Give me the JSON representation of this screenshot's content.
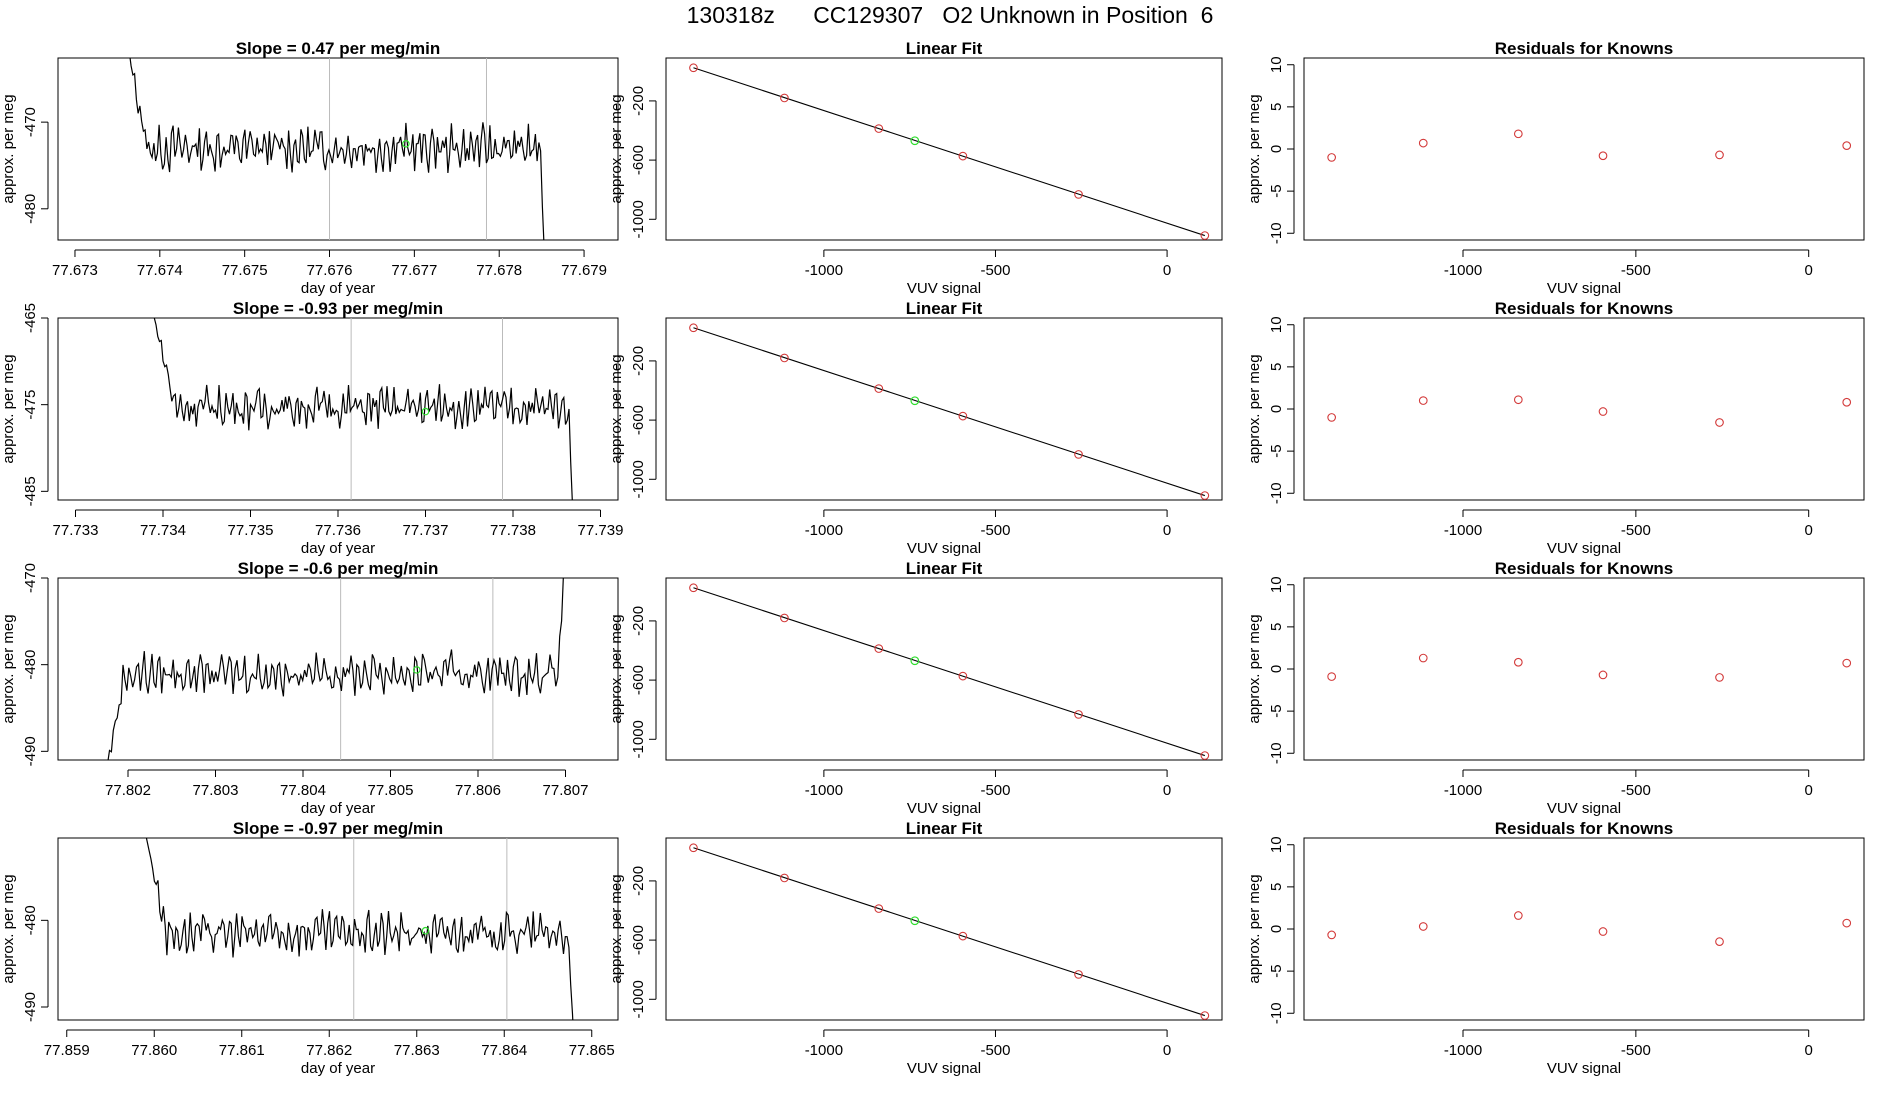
{
  "page_title": "130318z      CC129307   O2 Unknown in Position  6",
  "colors": {
    "line": "#000000",
    "known": "#d33a3a",
    "unknown": "#2edd2e",
    "vline": "#bbbbbb",
    "frame": "#000000"
  },
  "labels": {
    "time_xlabel": "day of year",
    "ylabel": "approx. per meg",
    "fit_title": "Linear Fit",
    "fit_xlabel": "VUV signal",
    "resid_title": "Residuals for Knowns",
    "resid_xlabel": "VUV signal"
  },
  "chart_data": [
    {
      "type": "line",
      "title": "Slope =  0.47  per meg/min",
      "xlabel": "day of year",
      "ylabel": "approx. per meg",
      "xlim": [
        77.6728,
        77.6794
      ],
      "ylim": [
        -483.6,
        -462.6
      ],
      "xticks": [
        77.673,
        77.674,
        77.675,
        77.676,
        77.677,
        77.678,
        77.679
      ],
      "xtick_labels": [
        "77.673",
        "77.674",
        "77.675",
        "77.676",
        "77.677",
        "77.678",
        "77.679"
      ],
      "yticks": [
        -470,
        -480
      ],
      "ytick_labels": [
        "-470",
        "-480"
      ],
      "x_start": 77.6736,
      "x_end": 77.67855,
      "y_start": -460,
      "base": -473,
      "amp": 2.2,
      "tail": -488,
      "vlines": [
        77.676,
        77.67785
      ],
      "unknown_point": {
        "x": 77.6769,
        "y": -472.5
      }
    },
    {
      "type": "line",
      "title": "Slope =  -0.93  per meg/min",
      "xlabel": "day of year",
      "ylabel": "approx. per meg",
      "xlim": [
        77.7328,
        77.7392
      ],
      "ylim": [
        -486,
        -465
      ],
      "xticks": [
        77.733,
        77.734,
        77.735,
        77.736,
        77.737,
        77.738,
        77.739
      ],
      "xtick_labels": [
        "77.733",
        "77.734",
        "77.735",
        "77.736",
        "77.737",
        "77.738",
        "77.739"
      ],
      "yticks": [
        -465,
        -475,
        -485
      ],
      "ytick_labels": [
        "-465",
        "-475",
        "-485"
      ],
      "x_start": 77.7339,
      "x_end": 77.7387,
      "y_start": -465,
      "base": -475.3,
      "amp": 2.0,
      "tail": -490,
      "vlines": [
        77.73615,
        77.73788
      ],
      "unknown_point": {
        "x": 77.737,
        "y": -475.8
      }
    },
    {
      "type": "line",
      "title": "Slope =  -0.6  per meg/min",
      "xlabel": "day of year",
      "ylabel": "approx. per meg",
      "xlim": [
        77.8012,
        77.8076
      ],
      "ylim": [
        -491,
        -470
      ],
      "xticks": [
        77.802,
        77.803,
        77.804,
        77.805,
        77.806,
        77.807
      ],
      "xtick_labels": [
        "77.802",
        "77.803",
        "77.804",
        "77.805",
        "77.806",
        "77.807"
      ],
      "yticks": [
        -470,
        -480,
        -490
      ],
      "ytick_labels": [
        "-470",
        "-480",
        "-490"
      ],
      "x_start": 77.8017,
      "x_end": 77.807,
      "y_start": -495,
      "base": -481,
      "amp": 2.0,
      "tail": -465,
      "vlines": [
        77.80443,
        77.80617
      ],
      "unknown_point": {
        "x": 77.8053,
        "y": -480.6
      }
    },
    {
      "type": "line",
      "title": "Slope =  -0.97  per meg/min",
      "xlabel": "day of year",
      "ylabel": "approx. per meg",
      "xlim": [
        77.8589,
        77.8653
      ],
      "ylim": [
        -491.5,
        -470.5
      ],
      "xticks": [
        77.859,
        77.86,
        77.861,
        77.862,
        77.863,
        77.864,
        77.865
      ],
      "xtick_labels": [
        "77.859",
        "77.860",
        "77.861",
        "77.862",
        "77.863",
        "77.864",
        "77.865"
      ],
      "yticks": [
        -480,
        -490
      ],
      "ytick_labels": [
        "-480",
        "-490"
      ],
      "x_start": 77.8599,
      "x_end": 77.8648,
      "y_start": -470,
      "base": -481.5,
      "amp": 2.0,
      "tail": -495,
      "vlines": [
        77.86228,
        77.86403
      ],
      "unknown_point": {
        "x": 77.8631,
        "y": -481.2
      }
    },
    {
      "type": "scatter",
      "title": "Linear Fit",
      "xlabel": "VUV signal",
      "ylabel": "approx. per meg",
      "xlim": [
        -1460,
        160
      ],
      "ylim": [
        -1140,
        90
      ],
      "xticks": [
        -1000,
        -500,
        0
      ],
      "xtick_labels": [
        "-1000",
        "-500",
        "0"
      ],
      "yticks": [
        -200,
        -600,
        -1000
      ],
      "ytick_labels": [
        "-200",
        "-600",
        "-1000"
      ],
      "line": {
        "x": [
          -1380,
          110
        ],
        "y": [
          24,
          -1110
        ]
      },
      "knowns": [
        {
          "x": -1380,
          "y": 24
        },
        {
          "x": -1115,
          "y": -180
        },
        {
          "x": -840,
          "y": -387
        },
        {
          "x": -595,
          "y": -573
        },
        {
          "x": -258,
          "y": -832
        },
        {
          "x": 110,
          "y": -1110
        }
      ],
      "unknown": {
        "x": -735,
        "y": -469
      }
    },
    {
      "type": "scatter",
      "title": "Linear Fit",
      "xlabel": "VUV signal",
      "ylabel": "approx. per meg",
      "xlim": [
        -1460,
        160
      ],
      "ylim": [
        -1140,
        90
      ],
      "xticks": [
        -1000,
        -500,
        0
      ],
      "xtick_labels": [
        "-1000",
        "-500",
        "0"
      ],
      "yticks": [
        -200,
        -600,
        -1000
      ],
      "ytick_labels": [
        "-200",
        "-600",
        "-1000"
      ],
      "line": {
        "x": [
          -1380,
          110
        ],
        "y": [
          24,
          -1110
        ]
      },
      "knowns": [
        {
          "x": -1380,
          "y": 24
        },
        {
          "x": -1115,
          "y": -180
        },
        {
          "x": -840,
          "y": -387
        },
        {
          "x": -595,
          "y": -573
        },
        {
          "x": -258,
          "y": -832
        },
        {
          "x": 110,
          "y": -1110
        }
      ],
      "unknown": {
        "x": -735,
        "y": -469
      }
    },
    {
      "type": "scatter",
      "title": "Linear Fit",
      "xlabel": "VUV signal",
      "ylabel": "approx. per meg",
      "xlim": [
        -1460,
        160
      ],
      "ylim": [
        -1140,
        90
      ],
      "xticks": [
        -1000,
        -500,
        0
      ],
      "xtick_labels": [
        "-1000",
        "-500",
        "0"
      ],
      "yticks": [
        -200,
        -600,
        -1000
      ],
      "ytick_labels": [
        "-200",
        "-600",
        "-1000"
      ],
      "line": {
        "x": [
          -1380,
          110
        ],
        "y": [
          24,
          -1110
        ]
      },
      "knowns": [
        {
          "x": -1380,
          "y": 24
        },
        {
          "x": -1115,
          "y": -180
        },
        {
          "x": -840,
          "y": -387
        },
        {
          "x": -595,
          "y": -573
        },
        {
          "x": -258,
          "y": -832
        },
        {
          "x": 110,
          "y": -1110
        }
      ],
      "unknown": {
        "x": -735,
        "y": -469
      }
    },
    {
      "type": "scatter",
      "title": "Linear Fit",
      "xlabel": "VUV signal",
      "ylabel": "approx. per meg",
      "xlim": [
        -1460,
        160
      ],
      "ylim": [
        -1140,
        90
      ],
      "xticks": [
        -1000,
        -500,
        0
      ],
      "xtick_labels": [
        "-1000",
        "-500",
        "0"
      ],
      "yticks": [
        -200,
        -600,
        -1000
      ],
      "ytick_labels": [
        "-200",
        "-600",
        "-1000"
      ],
      "line": {
        "x": [
          -1380,
          110
        ],
        "y": [
          24,
          -1110
        ]
      },
      "knowns": [
        {
          "x": -1380,
          "y": 24
        },
        {
          "x": -1115,
          "y": -180
        },
        {
          "x": -840,
          "y": -387
        },
        {
          "x": -595,
          "y": -573
        },
        {
          "x": -258,
          "y": -832
        },
        {
          "x": 110,
          "y": -1110
        }
      ],
      "unknown": {
        "x": -735,
        "y": -469
      }
    },
    {
      "type": "scatter",
      "title": "Residuals for Knowns",
      "xlabel": "VUV signal",
      "ylabel": "approx. per meg",
      "xlim": [
        -1460,
        160
      ],
      "ylim": [
        -10.8,
        10.8
      ],
      "xticks": [
        -1000,
        -500,
        0
      ],
      "xtick_labels": [
        "-1000",
        "-500",
        "0"
      ],
      "yticks": [
        10,
        5,
        0,
        -5,
        -10
      ],
      "ytick_labels": [
        "10",
        "5",
        "0",
        "-5",
        "-10"
      ],
      "x": [
        -1380,
        -1115,
        -840,
        -595,
        -258,
        110
      ],
      "y": [
        -1.0,
        0.7,
        1.8,
        -0.8,
        -0.7,
        0.4
      ]
    },
    {
      "type": "scatter",
      "title": "Residuals for Knowns",
      "xlabel": "VUV signal",
      "ylabel": "approx. per meg",
      "xlim": [
        -1460,
        160
      ],
      "ylim": [
        -10.8,
        10.8
      ],
      "xticks": [
        -1000,
        -500,
        0
      ],
      "xtick_labels": [
        "-1000",
        "-500",
        "0"
      ],
      "yticks": [
        10,
        5,
        0,
        -5,
        -10
      ],
      "ytick_labels": [
        "10",
        "5",
        "0",
        "-5",
        "-10"
      ],
      "x": [
        -1380,
        -1115,
        -840,
        -595,
        -258,
        110
      ],
      "y": [
        -1.0,
        1.0,
        1.1,
        -0.3,
        -1.6,
        0.8
      ]
    },
    {
      "type": "scatter",
      "title": "Residuals for Knowns",
      "xlabel": "VUV signal",
      "ylabel": "approx. per meg",
      "xlim": [
        -1460,
        160
      ],
      "ylim": [
        -10.8,
        10.8
      ],
      "xticks": [
        -1000,
        -500,
        0
      ],
      "xtick_labels": [
        "-1000",
        "-500",
        "0"
      ],
      "yticks": [
        10,
        5,
        0,
        -5,
        -10
      ],
      "ytick_labels": [
        "10",
        "5",
        "0",
        "-5",
        "-10"
      ],
      "x": [
        -1380,
        -1115,
        -840,
        -595,
        -258,
        110
      ],
      "y": [
        -0.9,
        1.3,
        0.8,
        -0.7,
        -1.0,
        0.7
      ]
    },
    {
      "type": "scatter",
      "title": "Residuals for Knowns",
      "xlabel": "VUV signal",
      "ylabel": "approx. per meg",
      "xlim": [
        -1460,
        160
      ],
      "ylim": [
        -10.8,
        10.8
      ],
      "xticks": [
        -1000,
        -500,
        0
      ],
      "xtick_labels": [
        "-1000",
        "-500",
        "0"
      ],
      "yticks": [
        10,
        5,
        0,
        -5,
        -10
      ],
      "ytick_labels": [
        "10",
        "5",
        "0",
        "-5",
        "-10"
      ],
      "x": [
        -1380,
        -1115,
        -840,
        -595,
        -258,
        110
      ],
      "y": [
        -0.7,
        0.3,
        1.6,
        -0.3,
        -1.5,
        0.7
      ]
    }
  ]
}
